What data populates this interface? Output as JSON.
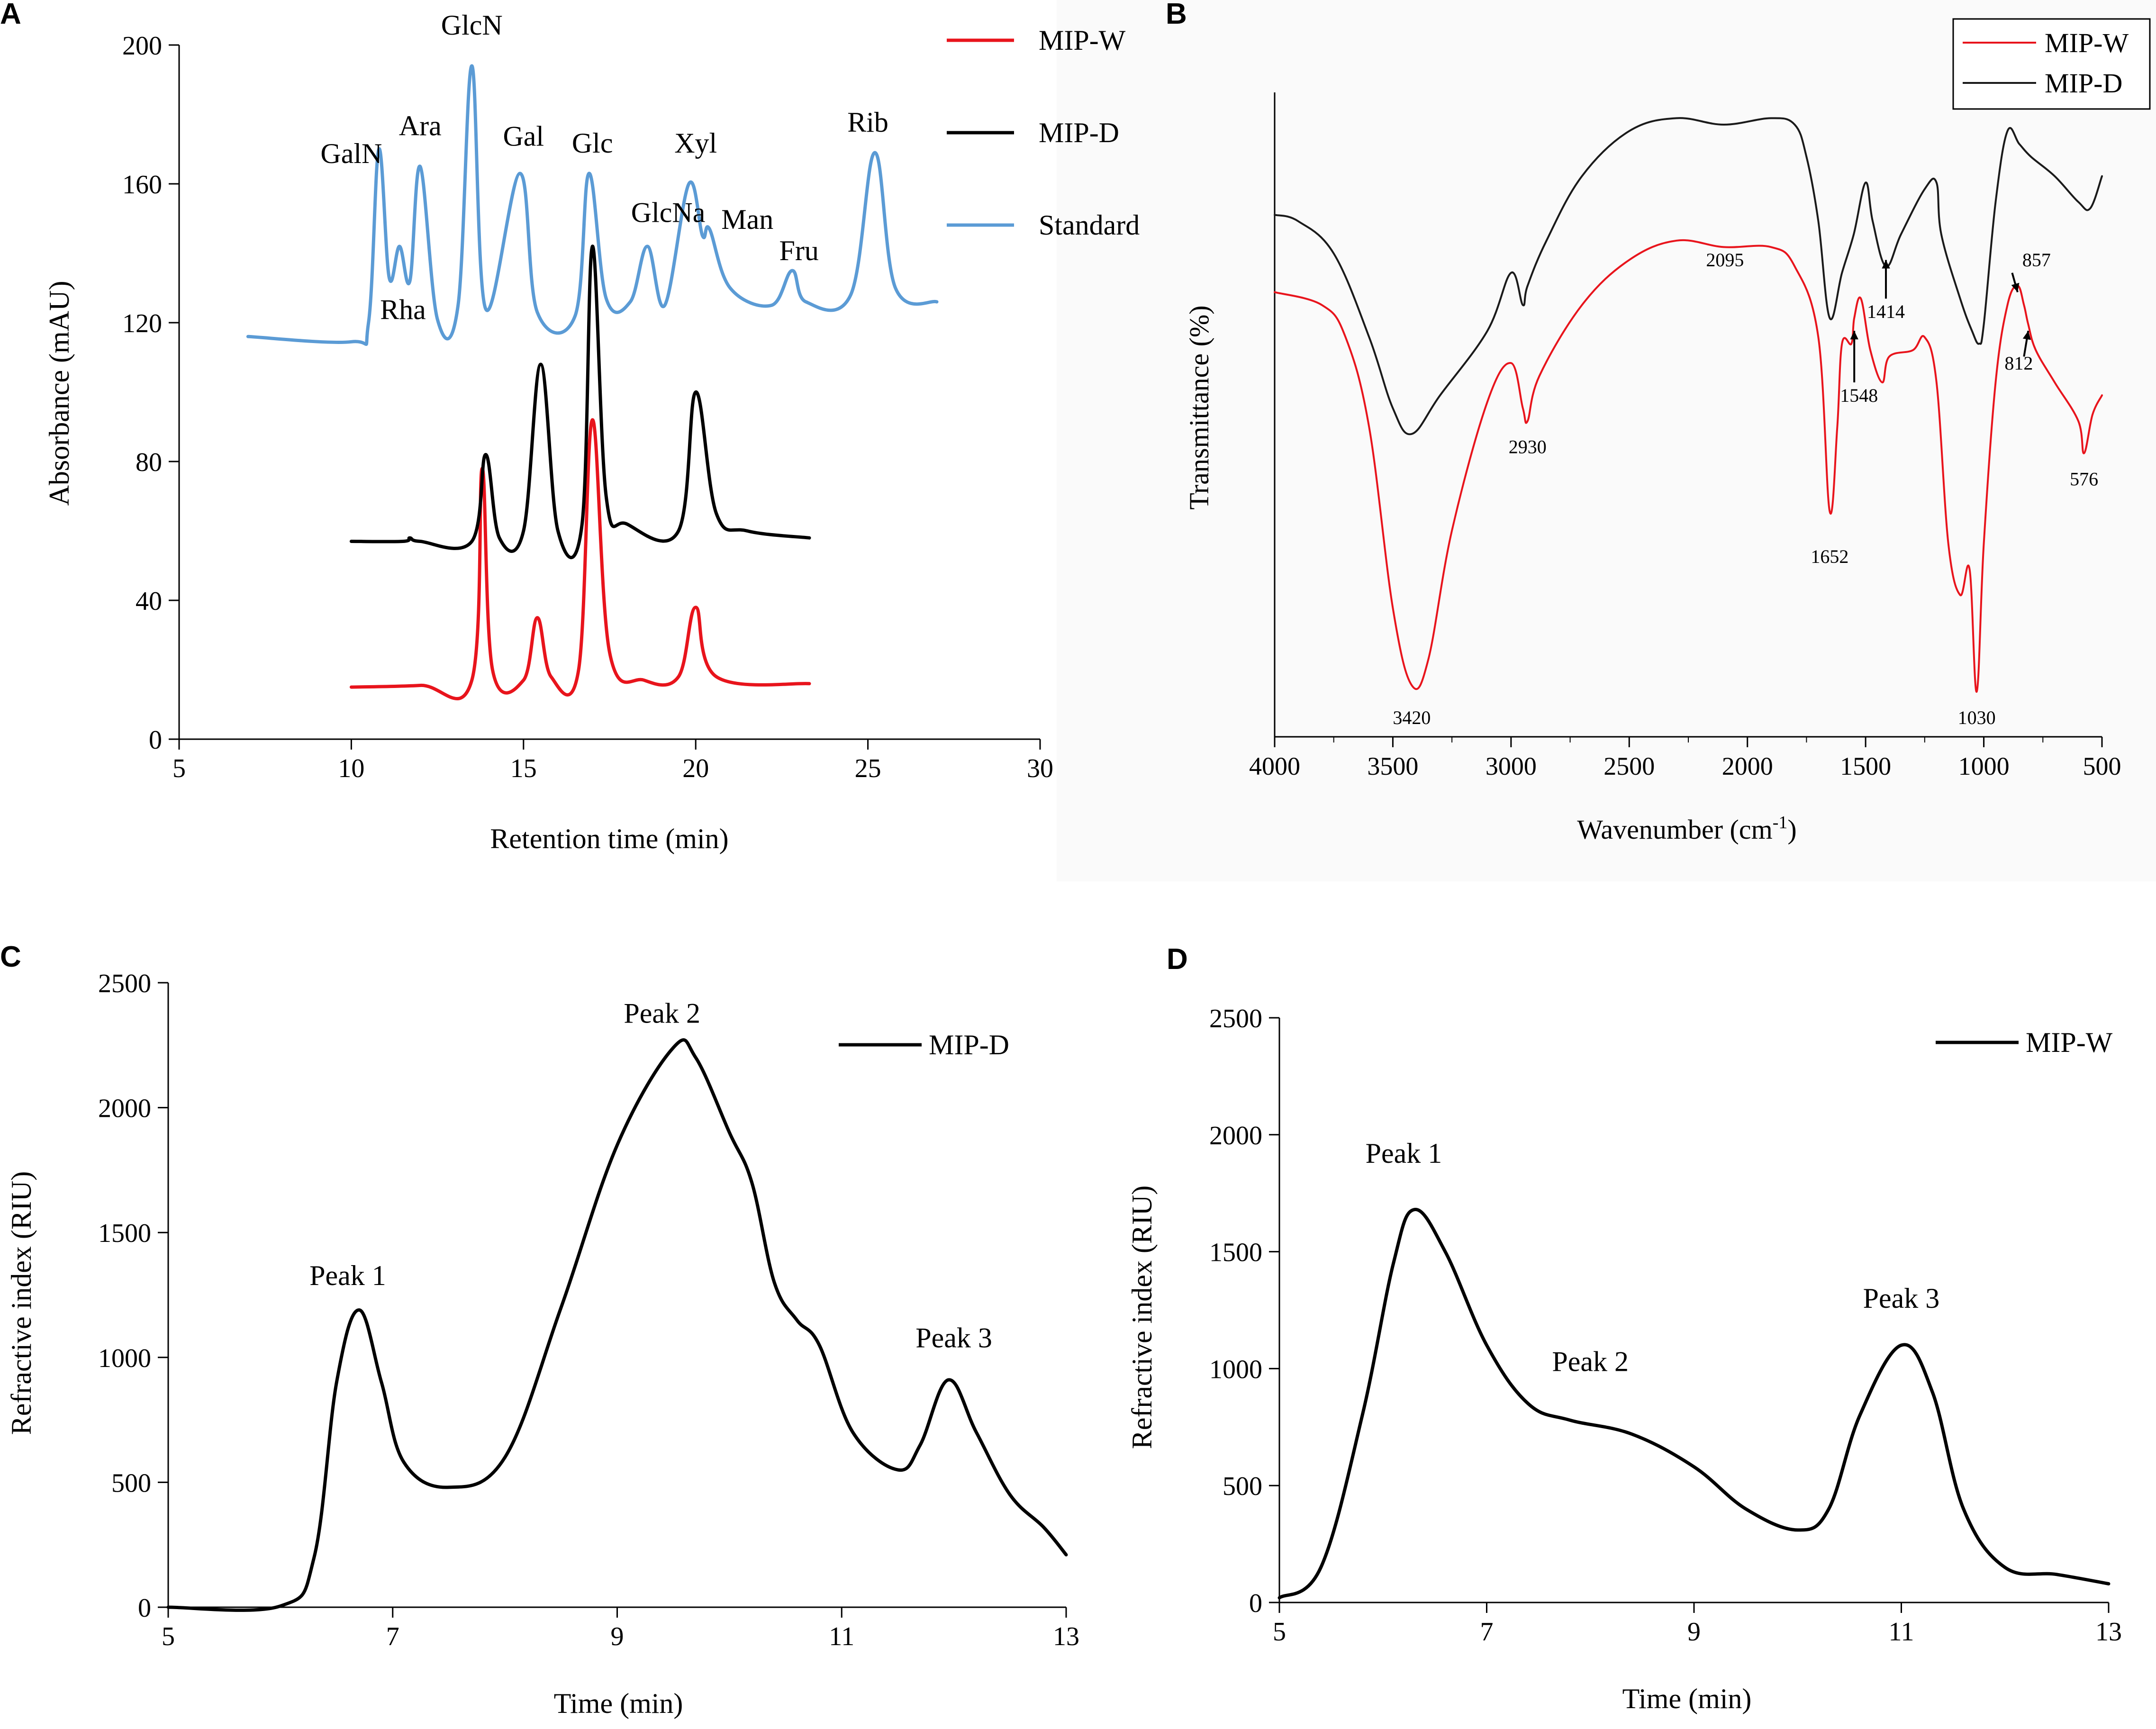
{
  "chart_data": [
    {
      "panel": "A",
      "type": "line",
      "xlabel": "Retention time (min)",
      "ylabel": "Absorbance (mAU)",
      "xlim": [
        5,
        30
      ],
      "ylim": [
        0,
        200
      ],
      "xticks": [
        5,
        10,
        15,
        20,
        25,
        30
      ],
      "yticks": [
        0,
        40,
        80,
        120,
        160,
        200
      ],
      "legend": {
        "position": "top-right",
        "entries": [
          "MIP-W",
          "MIP-D",
          "Standard"
        ]
      },
      "series": [
        {
          "name": "MIP-W",
          "color": "#e8141c",
          "points": [
            [
              10,
              15
            ],
            [
              12,
              15.5
            ],
            [
              13.5,
              17
            ],
            [
              13.8,
              78
            ],
            [
              14.1,
              20
            ],
            [
              15,
              17
            ],
            [
              15.4,
              35
            ],
            [
              15.8,
              18
            ],
            [
              16.6,
              20
            ],
            [
              17,
              92
            ],
            [
              17.5,
              25
            ],
            [
              18.5,
              17
            ],
            [
              19.5,
              18
            ],
            [
              20,
              38
            ],
            [
              20.6,
              18
            ],
            [
              23.3,
              16
            ]
          ]
        },
        {
          "name": "MIP-D",
          "color": "#000000",
          "points": [
            [
              10,
              57
            ],
            [
              11.5,
              57
            ],
            [
              11.7,
              58
            ],
            [
              12,
              57
            ],
            [
              13.5,
              57
            ],
            [
              13.9,
              82
            ],
            [
              14.3,
              58
            ],
            [
              15,
              60
            ],
            [
              15.5,
              108
            ],
            [
              16,
              60
            ],
            [
              16.7,
              62
            ],
            [
              17,
              142
            ],
            [
              17.4,
              70
            ],
            [
              18,
              62
            ],
            [
              19.5,
              60
            ],
            [
              20,
              100
            ],
            [
              20.6,
              65
            ],
            [
              21.5,
              60
            ],
            [
              23.3,
              58
            ]
          ]
        },
        {
          "name": "Standard",
          "color": "#5b9bd5",
          "points": [
            [
              7,
              116
            ],
            [
              10,
              114.5
            ],
            [
              10.5,
              120
            ],
            [
              10.8,
              170
            ],
            [
              11.1,
              133
            ],
            [
              11.4,
              142
            ],
            [
              11.7,
              132
            ],
            [
              12,
              165
            ],
            [
              12.5,
              121
            ],
            [
              13.1,
              125
            ],
            [
              13.5,
              194
            ],
            [
              13.9,
              124
            ],
            [
              14.9,
              163
            ],
            [
              15.4,
              123
            ],
            [
              16.5,
              122
            ],
            [
              16.9,
              163
            ],
            [
              17.4,
              127
            ],
            [
              18.1,
              126
            ],
            [
              18.6,
              142
            ],
            [
              19.1,
              125
            ],
            [
              19.8,
              160
            ],
            [
              20.2,
              145
            ],
            [
              20.4,
              147
            ],
            [
              21,
              130
            ],
            [
              22.2,
              125
            ],
            [
              22.8,
              135
            ],
            [
              23.2,
              126
            ],
            [
              24.5,
              128
            ],
            [
              25.2,
              169
            ],
            [
              25.8,
              130
            ],
            [
              27,
              126
            ]
          ]
        }
      ],
      "annotations": [
        {
          "text": "GlcN",
          "x": 13.5,
          "y": 203
        },
        {
          "text": "GalN",
          "x": 10.0,
          "y": 166
        },
        {
          "text": "Ara",
          "x": 12.0,
          "y": 174
        },
        {
          "text": "Gal",
          "x": 15.0,
          "y": 171
        },
        {
          "text": "Glc",
          "x": 17.0,
          "y": 169
        },
        {
          "text": "Xyl",
          "x": 20.0,
          "y": 169
        },
        {
          "text": "Rib",
          "x": 25.0,
          "y": 175
        },
        {
          "text": "Rha",
          "x": 11.5,
          "y": 121
        },
        {
          "text": "GlcNa",
          "x": 19.2,
          "y": 149
        },
        {
          "text": "Man",
          "x": 21.5,
          "y": 147
        },
        {
          "text": "Fru",
          "x": 23.0,
          "y": 138
        }
      ]
    },
    {
      "panel": "B",
      "type": "line",
      "xlabel_main": "Wavenumber (cm",
      "xlabel_sup": "-1",
      "xlabel_end": ")",
      "ylabel": "Transmittance (%)",
      "xlim": [
        4000,
        500
      ],
      "ylim": [
        0,
        100
      ],
      "xticks": [
        4000,
        3500,
        3000,
        2500,
        2000,
        1500,
        1000,
        500
      ],
      "legend": {
        "position": "top-right",
        "entries": [
          "MIP-W",
          "MIP-D"
        ]
      },
      "series": [
        {
          "name": "MIP-W",
          "color": "#e8141c",
          "points": [
            [
              4000,
              69
            ],
            [
              3800,
              67
            ],
            [
              3700,
              62
            ],
            [
              3600,
              48
            ],
            [
              3500,
              20
            ],
            [
              3420,
              8
            ],
            [
              3350,
              12
            ],
            [
              3250,
              32
            ],
            [
              3100,
              52
            ],
            [
              3000,
              58
            ],
            [
              2950,
              51
            ],
            [
              2930,
              49
            ],
            [
              2880,
              56
            ],
            [
              2700,
              67
            ],
            [
              2500,
              74
            ],
            [
              2300,
              77
            ],
            [
              2100,
              76
            ],
            [
              1900,
              76
            ],
            [
              1800,
              73
            ],
            [
              1700,
              62
            ],
            [
              1652,
              35
            ],
            [
              1620,
              48
            ],
            [
              1600,
              61
            ],
            [
              1560,
              61
            ],
            [
              1548,
              65
            ],
            [
              1520,
              68
            ],
            [
              1480,
              60
            ],
            [
              1430,
              55
            ],
            [
              1400,
              59
            ],
            [
              1300,
              60
            ],
            [
              1250,
              62
            ],
            [
              1200,
              55
            ],
            [
              1150,
              30
            ],
            [
              1100,
              22
            ],
            [
              1060,
              26
            ],
            [
              1030,
              7
            ],
            [
              1000,
              30
            ],
            [
              950,
              55
            ],
            [
              900,
              67
            ],
            [
              857,
              70
            ],
            [
              830,
              67
            ],
            [
              812,
              64
            ],
            [
              780,
              60
            ],
            [
              700,
              55
            ],
            [
              600,
              49
            ],
            [
              576,
              44
            ],
            [
              540,
              50
            ],
            [
              500,
              53
            ]
          ]
        },
        {
          "name": "MIP-D",
          "color": "#1a1a1a",
          "points": [
            [
              4000,
              81
            ],
            [
              3900,
              80
            ],
            [
              3750,
              75
            ],
            [
              3600,
              62
            ],
            [
              3500,
              51
            ],
            [
              3420,
              47
            ],
            [
              3300,
              53
            ],
            [
              3100,
              63
            ],
            [
              3000,
              72
            ],
            [
              2950,
              67
            ],
            [
              2930,
              70
            ],
            [
              2850,
              77
            ],
            [
              2700,
              87
            ],
            [
              2500,
              94
            ],
            [
              2300,
              96
            ],
            [
              2100,
              95
            ],
            [
              1900,
              96
            ],
            [
              1800,
              95
            ],
            [
              1750,
              90
            ],
            [
              1700,
              80
            ],
            [
              1652,
              65
            ],
            [
              1600,
              72
            ],
            [
              1550,
              78
            ],
            [
              1500,
              86
            ],
            [
              1470,
              80
            ],
            [
              1414,
              73
            ],
            [
              1350,
              78
            ],
            [
              1250,
              85
            ],
            [
              1200,
              86
            ],
            [
              1180,
              78
            ],
            [
              1100,
              68
            ],
            [
              1050,
              63
            ],
            [
              1020,
              61
            ],
            [
              1000,
              64
            ],
            [
              950,
              83
            ],
            [
              900,
              94
            ],
            [
              850,
              92
            ],
            [
              800,
              90
            ],
            [
              700,
              87
            ],
            [
              600,
              83
            ],
            [
              550,
              82
            ],
            [
              500,
              87
            ]
          ]
        }
      ],
      "annotations": [
        {
          "text": "3420",
          "x": 3420,
          "y": 2
        },
        {
          "text": "2930",
          "x": 2930,
          "y": 44
        },
        {
          "text": "2095",
          "x": 2095,
          "y": 73
        },
        {
          "text": "1652",
          "x": 1652,
          "y": 27
        },
        {
          "text": "1548",
          "x": 1548,
          "y": 52
        },
        {
          "text": "1414",
          "x": 1414,
          "y": 65
        },
        {
          "text": "1030",
          "x": 1030,
          "y": 2
        },
        {
          "text": "857",
          "x": 857,
          "y": 73
        },
        {
          "text": "812",
          "x": 812,
          "y": 57
        },
        {
          "text": "576",
          "x": 576,
          "y": 39
        }
      ]
    },
    {
      "panel": "C",
      "type": "line",
      "xlabel": "Time (min)",
      "ylabel": "Refractive index (RIU)",
      "xlim": [
        5,
        13
      ],
      "ylim": [
        0,
        2500
      ],
      "xticks": [
        5,
        7,
        9,
        11,
        13
      ],
      "yticks": [
        0,
        500,
        1000,
        1500,
        2000,
        2500
      ],
      "legend": {
        "position": "top-right",
        "entries": [
          "MIP-D"
        ]
      },
      "series": [
        {
          "name": "MIP-D",
          "color": "#000000",
          "points": [
            [
              5,
              0
            ],
            [
              6,
              5
            ],
            [
              6.3,
              200
            ],
            [
              6.5,
              900
            ],
            [
              6.7,
              1190
            ],
            [
              6.9,
              900
            ],
            [
              7.1,
              580
            ],
            [
              7.5,
              480
            ],
            [
              8,
              600
            ],
            [
              8.5,
              1200
            ],
            [
              9,
              1850
            ],
            [
              9.5,
              2240
            ],
            [
              9.7,
              2200
            ],
            [
              10,
              1900
            ],
            [
              10.2,
              1700
            ],
            [
              10.4,
              1300
            ],
            [
              10.6,
              1150
            ],
            [
              10.8,
              1050
            ],
            [
              11.1,
              700
            ],
            [
              11.5,
              550
            ],
            [
              11.7,
              650
            ],
            [
              11.95,
              910
            ],
            [
              12.2,
              700
            ],
            [
              12.5,
              450
            ],
            [
              12.8,
              320
            ],
            [
              13,
              210
            ]
          ]
        }
      ],
      "annotations": [
        {
          "text": "Peak 1",
          "x": 6.6,
          "y": 1290
        },
        {
          "text": "Peak 2",
          "x": 9.4,
          "y": 2340
        },
        {
          "text": "Peak 3",
          "x": 12.0,
          "y": 1040
        }
      ]
    },
    {
      "panel": "D",
      "type": "line",
      "xlabel": "Time (min)",
      "ylabel": "Refractive index (RIU)",
      "xlim": [
        5,
        13
      ],
      "ylim": [
        0,
        2500
      ],
      "xticks": [
        5,
        7,
        9,
        11,
        13
      ],
      "yticks": [
        0,
        500,
        1000,
        1500,
        2000,
        2500
      ],
      "legend": {
        "position": "top-right",
        "entries": [
          "MIP-W"
        ]
      },
      "series": [
        {
          "name": "MIP-W",
          "color": "#000000",
          "points": [
            [
              5,
              20
            ],
            [
              5.4,
              150
            ],
            [
              5.8,
              800
            ],
            [
              6.1,
              1450
            ],
            [
              6.3,
              1680
            ],
            [
              6.6,
              1500
            ],
            [
              7,
              1100
            ],
            [
              7.4,
              850
            ],
            [
              7.8,
              780
            ],
            [
              8.4,
              720
            ],
            [
              9,
              580
            ],
            [
              9.5,
              400
            ],
            [
              10,
              310
            ],
            [
              10.3,
              400
            ],
            [
              10.6,
              800
            ],
            [
              11,
              1100
            ],
            [
              11.3,
              900
            ],
            [
              11.6,
              400
            ],
            [
              12,
              150
            ],
            [
              12.5,
              120
            ],
            [
              13,
              80
            ]
          ]
        }
      ],
      "annotations": [
        {
          "text": "Peak 1",
          "x": 6.2,
          "y": 1880
        },
        {
          "text": "Peak 2",
          "x": 8.0,
          "y": 990
        },
        {
          "text": "Peak 3",
          "x": 11.0,
          "y": 1260
        }
      ]
    }
  ]
}
